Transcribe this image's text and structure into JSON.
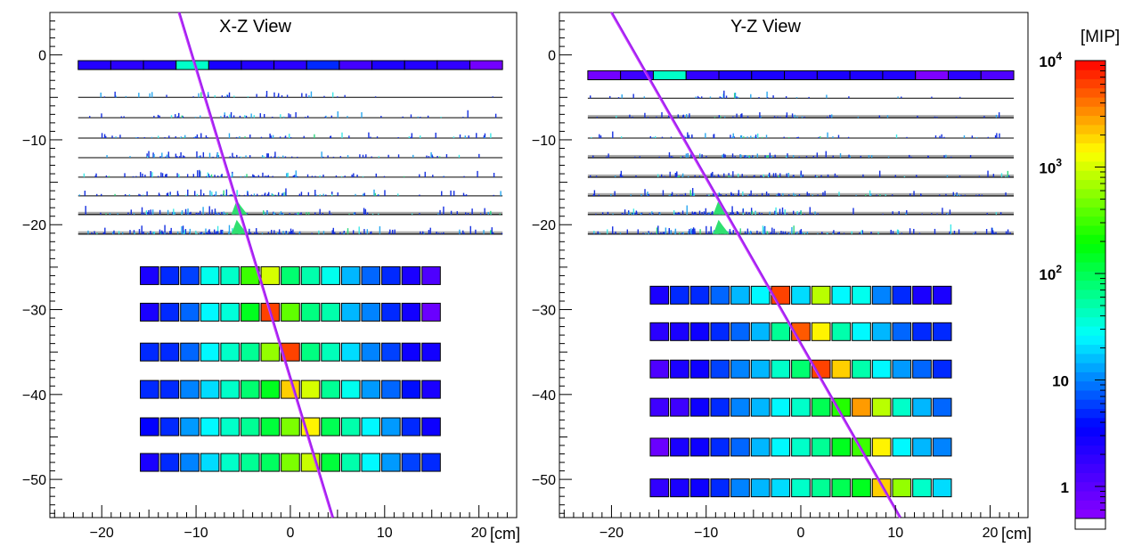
{
  "chart_data": [
    {
      "type": "heatmap",
      "title": "X-Z View",
      "xlabel": "[cm]",
      "xlim": [
        -25.5,
        24
      ],
      "ylim": [
        -54.5,
        5
      ],
      "xticks": [
        {
          "value": -20,
          "label": "−20"
        },
        {
          "value": -10,
          "label": "−10"
        },
        {
          "value": 0,
          "label": "0"
        },
        {
          "value": 10,
          "label": "10"
        },
        {
          "value": 20,
          "label": "20"
        }
      ],
      "yticks": [
        {
          "value": 0,
          "label": "0"
        },
        {
          "value": -10,
          "label": "−10"
        },
        {
          "value": -20,
          "label": "−20"
        },
        {
          "value": -30,
          "label": "−30"
        },
        {
          "value": -40,
          "label": "−40"
        },
        {
          "value": -50,
          "label": "−50"
        }
      ],
      "track": {
        "x1": -11.8,
        "y1": 5,
        "x2": 4.5,
        "y2": -54.5,
        "color": "#a020f0"
      },
      "top_strip": {
        "z": -1.2,
        "x_start": -22.5,
        "x_end": 22.5,
        "mip": [
          2.2,
          2.0,
          2.3,
          40,
          2.6,
          2.2,
          2.0,
          5,
          1.4,
          2.4,
          2.2,
          1.8,
          0.7
        ]
      },
      "tracker_planes": {
        "x_start": -22.5,
        "x_end": 22.5,
        "z": [
          -5,
          -7.4,
          -9.8,
          -12.1,
          -14.4,
          -16.6,
          -18.8,
          -21.1
        ],
        "gray_planes": [
          6,
          7
        ],
        "hit_center": -6,
        "hit_spread": 9,
        "hits_per_plane": [
          40,
          55,
          65,
          75,
          85,
          95,
          110,
          150
        ],
        "green_blob": {
          "x": -5.5,
          "planes": [
            6,
            7
          ]
        }
      },
      "calo": {
        "x_start": -16,
        "x_end": 16,
        "cell_count": 15,
        "rows": [
          {
            "z": -26,
            "mip": [
              2.5,
              5,
              6,
              30,
              40,
              300,
              1000,
              80,
              50,
              30,
              15,
              8,
              5,
              2.5,
              1.2
            ]
          },
          {
            "z": -30.3,
            "mip": [
              2.5,
              5,
              8,
              25,
              35,
              150,
              6000,
              400,
              70,
              50,
              15,
              10,
              5,
              2.8,
              0.8
            ]
          },
          {
            "z": -35,
            "mip": [
              5,
              5,
              8,
              25,
              40,
              60,
              600,
              6000,
              70,
              45,
              20,
              10,
              6,
              3,
              2.8
            ]
          },
          {
            "z": -39.4,
            "mip": [
              5,
              5,
              10,
              20,
              40,
              80,
              150,
              2000,
              1000,
              60,
              30,
              12,
              8,
              4,
              2.5
            ]
          },
          {
            "z": -43.8,
            "mip": [
              3.5,
              5,
              12,
              25,
              40,
              60,
              120,
              500,
              1500,
              100,
              50,
              25,
              12,
              5,
              3
            ]
          },
          {
            "z": -48,
            "mip": [
              2.5,
              5,
              10,
              20,
              40,
              60,
              90,
              500,
              900,
              120,
              50,
              25,
              12,
              6,
              5
            ]
          }
        ]
      }
    },
    {
      "type": "heatmap",
      "title": "Y-Z View",
      "xlabel": "[cm]",
      "xlim": [
        -25.5,
        24
      ],
      "ylim": [
        -54.5,
        5
      ],
      "xticks": [
        {
          "value": -20,
          "label": "−20"
        },
        {
          "value": -10,
          "label": "−10"
        },
        {
          "value": 0,
          "label": "0"
        },
        {
          "value": 10,
          "label": "10"
        },
        {
          "value": 20,
          "label": "20"
        }
      ],
      "yticks": [
        {
          "value": 0,
          "label": "0"
        },
        {
          "value": -10,
          "label": "−10"
        },
        {
          "value": -20,
          "label": "−20"
        },
        {
          "value": -30,
          "label": "−30"
        },
        {
          "value": -40,
          "label": "−40"
        },
        {
          "value": -50,
          "label": "−50"
        }
      ],
      "track": {
        "x1": -20,
        "y1": 5,
        "x2": 10.5,
        "y2": -54.5,
        "color": "#a020f0"
      },
      "top_strip": {
        "z": -2.4,
        "x_start": -22.5,
        "x_end": 22.5,
        "mip": [
          0.7,
          1.5,
          40,
          1.8,
          2.4,
          2.5,
          2.2,
          2.5,
          2.4,
          2.3,
          0.6,
          2.0,
          1.2
        ]
      },
      "tracker_planes": {
        "x_start": -22.5,
        "x_end": 22.5,
        "z": [
          -5.1,
          -7.4,
          -9.8,
          -12.1,
          -14.4,
          -16.6,
          -18.8,
          -21.1
        ],
        "gray_planes": [
          1,
          3,
          4,
          5,
          6,
          7
        ],
        "hit_center": -8,
        "hit_spread": 9,
        "hits_per_plane": [
          35,
          50,
          60,
          70,
          80,
          95,
          110,
          150
        ],
        "green_blob": {
          "x": -8.5,
          "planes": [
            6,
            7
          ]
        }
      },
      "calo": {
        "x_start": -16,
        "x_end": 16,
        "cell_count": 15,
        "rows": [
          {
            "z": -28.3,
            "mip": [
              2.5,
              5,
              5,
              8,
              15,
              25,
              6000,
              20,
              800,
              25,
              30,
              10,
              5,
              2.5,
              2.5
            ]
          },
          {
            "z": -32.6,
            "mip": [
              2,
              2.5,
              3,
              5,
              8,
              15,
              60,
              5000,
              1500,
              50,
              25,
              15,
              8,
              5,
              5
            ]
          },
          {
            "z": -37,
            "mip": [
              1.2,
              2.5,
              3,
              6,
              10,
              15,
              40,
              80,
              6000,
              2000,
              50,
              25,
              12,
              8,
              5
            ]
          },
          {
            "z": -41.5,
            "mip": [
              1.5,
              1.5,
              3,
              5,
              10,
              15,
              25,
              40,
              100,
              250,
              3000,
              800,
              40,
              15,
              8
            ]
          },
          {
            "z": -46.2,
            "mip": [
              0.8,
              2.5,
              3,
              5,
              8,
              15,
              25,
              40,
              60,
              150,
              300,
              1500,
              25,
              15,
              10
            ]
          },
          {
            "z": -51,
            "mip": [
              1.8,
              2.5,
              3,
              5,
              10,
              15,
              20,
              40,
              60,
              100,
              150,
              2000,
              600,
              40,
              20
            ]
          }
        ]
      }
    }
  ],
  "colorbar": {
    "label": "[MIP]",
    "scale": "log",
    "range": [
      0.5,
      10000
    ],
    "ticks": [
      {
        "value": 1,
        "label": "1",
        "exp": ""
      },
      {
        "value": 10,
        "label": "10",
        "exp": ""
      },
      {
        "value": 100,
        "label": "10",
        "exp": "2"
      },
      {
        "value": 1000,
        "label": "10",
        "exp": "3"
      },
      {
        "value": 10000,
        "label": "10",
        "exp": "4"
      }
    ],
    "palette": [
      "#8b00ff",
      "#0000ff",
      "#00ffff",
      "#00ff00",
      "#ffff00",
      "#ff0000"
    ]
  }
}
